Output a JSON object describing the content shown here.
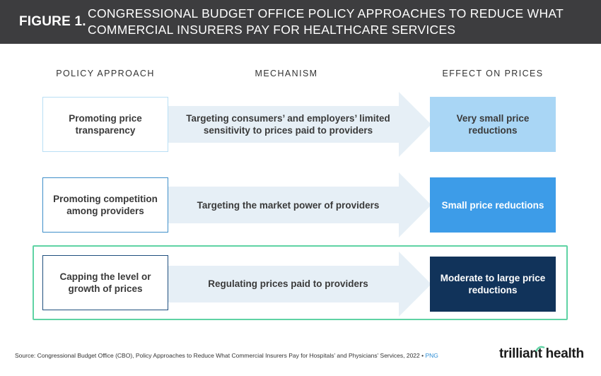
{
  "header": {
    "figure_label": "FIGURE 1.",
    "title": "CONGRESSIONAL BUDGET OFFICE POLICY APPROACHES TO REDUCE WHAT COMMERCIAL INSURERS PAY FOR HEALTHCARE SERVICES"
  },
  "columns": {
    "policy": "POLICY APPROACH",
    "mechanism": "MECHANISM",
    "effect": "EFFECT ON PRICES"
  },
  "rows": [
    {
      "policy": "Promoting price transparency",
      "mechanism": "Targeting consumers’ and employers’ limited sensitivity to prices paid to providers",
      "effect": "Very small price reductions",
      "policy_border": "#b9dff5",
      "effect_bg": "#a9d6f5",
      "effect_color": "#3a3a3a"
    },
    {
      "policy": "Promoting competition among providers",
      "mechanism": "Targeting the market power of providers",
      "effect": "Small price reductions",
      "policy_border": "#3e8fc9",
      "effect_bg": "#3d9ce8",
      "effect_color": "#ffffff"
    },
    {
      "policy": "Capping the level or growth of prices",
      "mechanism": "Regulating prices paid to providers",
      "effect": "Moderate to large price reductions",
      "policy_border": "#1f4f7e",
      "effect_bg": "#11335a",
      "effect_color": "#ffffff"
    }
  ],
  "colors": {
    "header_bg": "#3d3d3f",
    "arrow": "#e6eff6",
    "highlight": "#5fd3a4"
  },
  "footer": {
    "source": "Source: Congressional Budget Office (CBO), Policy Approaches to Reduce What Commercial Insurers Pay for Hospitals’ and Physicians’ Services, 2022",
    "separator": "•",
    "png": "PNG",
    "logo": "trilliant health"
  }
}
